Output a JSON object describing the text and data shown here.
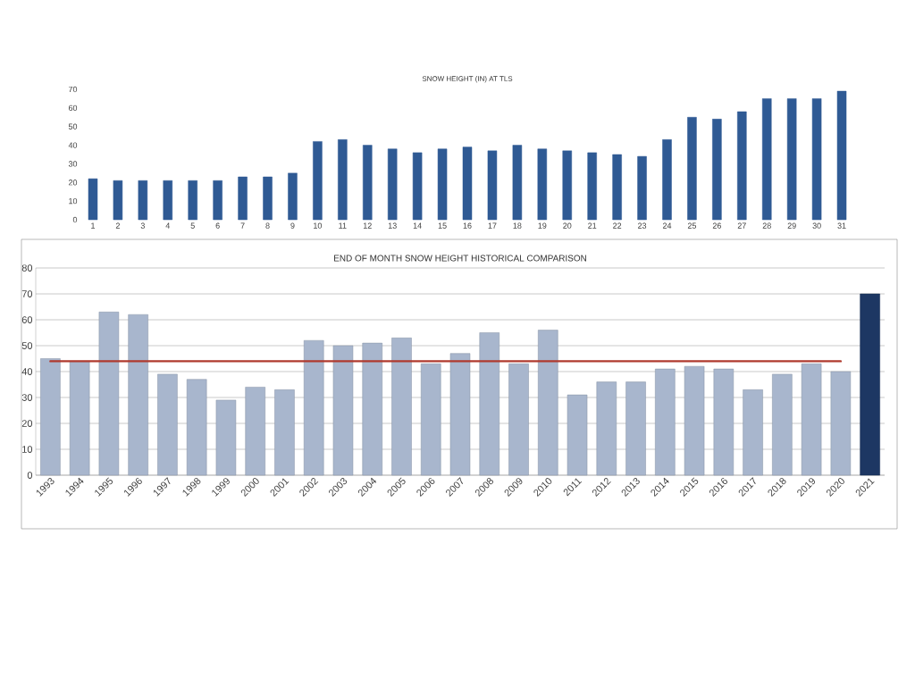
{
  "chart_data": [
    {
      "type": "bar",
      "title": "SNOW HEIGHT (IN) AT TLS",
      "categories": [
        "1",
        "2",
        "3",
        "4",
        "5",
        "6",
        "7",
        "8",
        "9",
        "10",
        "11",
        "12",
        "13",
        "14",
        "15",
        "16",
        "17",
        "18",
        "19",
        "20",
        "21",
        "22",
        "23",
        "24",
        "25",
        "26",
        "27",
        "28",
        "29",
        "30",
        "31"
      ],
      "values": [
        22,
        21,
        21,
        21,
        21,
        21,
        23,
        23,
        25,
        42,
        43,
        40,
        38,
        36,
        38,
        39,
        37,
        40,
        38,
        37,
        36,
        35,
        34,
        43,
        55,
        54,
        58,
        65,
        65,
        65,
        69
      ],
      "color": "#2f5a94",
      "ylim": [
        0,
        70
      ],
      "yticks": [
        0,
        10,
        20,
        30,
        40,
        50,
        60,
        70
      ]
    },
    {
      "type": "bar",
      "title": "END OF MONTH SNOW HEIGHT HISTORICAL COMPARISON",
      "categories": [
        "1993",
        "1994",
        "1995",
        "1996",
        "1997",
        "1998",
        "1999",
        "2000",
        "2001",
        "2002",
        "2003",
        "2004",
        "2005",
        "2006",
        "2007",
        "2008",
        "2009",
        "2010",
        "2011",
        "2012",
        "2013",
        "2014",
        "2015",
        "2016",
        "2017",
        "2018",
        "2019",
        "2020",
        "2021"
      ],
      "series": [
        {
          "type": "bar",
          "values": [
            45,
            44,
            63,
            62,
            39,
            37,
            29,
            34,
            33,
            52,
            50,
            51,
            53,
            43,
            47,
            55,
            43,
            56,
            31,
            36,
            36,
            41,
            42,
            41,
            33,
            39,
            43,
            40,
            70
          ],
          "colors": [
            "#a8b6cd",
            "#a8b6cd",
            "#a8b6cd",
            "#a8b6cd",
            "#a8b6cd",
            "#a8b6cd",
            "#a8b6cd",
            "#a8b6cd",
            "#a8b6cd",
            "#a8b6cd",
            "#a8b6cd",
            "#a8b6cd",
            "#a8b6cd",
            "#a8b6cd",
            "#a8b6cd",
            "#a8b6cd",
            "#a8b6cd",
            "#a8b6cd",
            "#a8b6cd",
            "#a8b6cd",
            "#a8b6cd",
            "#a8b6cd",
            "#a8b6cd",
            "#a8b6cd",
            "#a8b6cd",
            "#a8b6cd",
            "#a8b6cd",
            "#a8b6cd",
            "#1d3763"
          ]
        },
        {
          "type": "line",
          "color": "#b03a2e",
          "values": [
            44,
            44,
            44,
            44,
            44,
            44,
            44,
            44,
            44,
            44,
            44,
            44,
            44,
            44,
            44,
            44,
            44,
            44,
            44,
            44,
            44,
            44,
            44,
            44,
            44,
            44,
            44,
            44,
            null
          ]
        }
      ],
      "ylim": [
        0,
        80
      ],
      "yticks": [
        0,
        10,
        20,
        30,
        40,
        50,
        60,
        70,
        80
      ],
      "grid": "y"
    }
  ]
}
